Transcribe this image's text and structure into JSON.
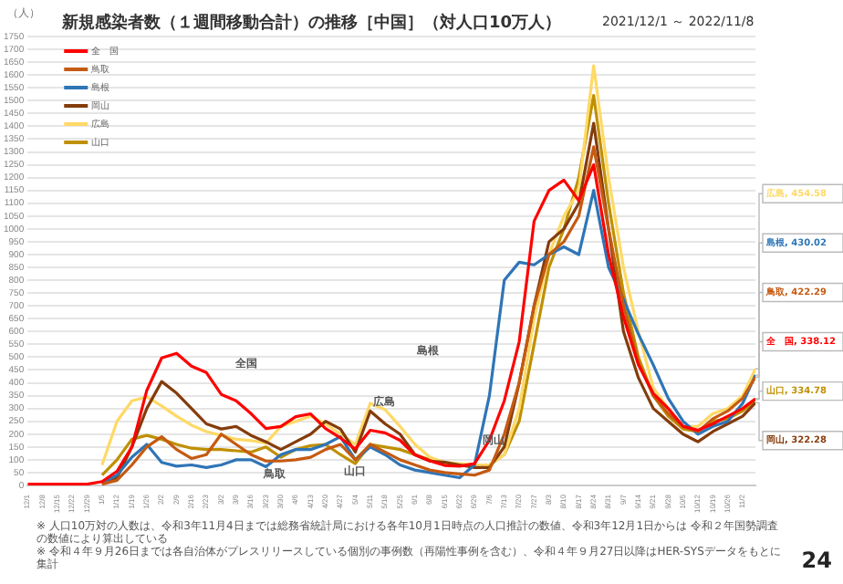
{
  "chart_data": {
    "type": "line",
    "title": "新規感染者数（１週間移動合計）の推移［中国］（対人口10万人）",
    "subtitle": "2021/12/1 ～ 2022/11/8",
    "ylabel": "（人）",
    "x": [
      "2021-12-01",
      "2021-12-08",
      "2021-12-15",
      "2021-12-22",
      "2021-12-29",
      "2022-01-05",
      "2022-01-12",
      "2022-01-19",
      "2022-01-26",
      "2022-02-02",
      "2022-02-09",
      "2022-02-16",
      "2022-02-23",
      "2022-03-02",
      "2022-03-09",
      "2022-03-16",
      "2022-03-23",
      "2022-03-30",
      "2022-04-06",
      "2022-04-13",
      "2022-04-20",
      "2022-04-27",
      "2022-05-04",
      "2022-05-11",
      "2022-05-18",
      "2022-05-25",
      "2022-06-01",
      "2022-06-08",
      "2022-06-15",
      "2022-06-22",
      "2022-06-29",
      "2022-07-06",
      "2022-07-13",
      "2022-07-20",
      "2022-07-27",
      "2022-08-03",
      "2022-08-10",
      "2022-08-17",
      "2022-08-24",
      "2022-08-31",
      "2022-09-07",
      "2022-09-14",
      "2022-09-21",
      "2022-09-28",
      "2022-10-05",
      "2022-10-12",
      "2022-10-19",
      "2022-10-26",
      "2022-11-02",
      "2022-11-08"
    ],
    "series": [
      {
        "name": "全　国",
        "color": "#ff0000",
        "values": [
          5,
          5,
          5,
          5,
          5,
          15,
          55,
          150,
          370,
          497,
          515,
          465,
          440,
          355,
          330,
          280,
          222,
          230,
          268,
          279,
          222,
          185,
          142,
          215,
          205,
          176,
          119,
          96,
          78,
          75,
          85,
          176,
          330,
          560,
          1030,
          1150,
          1190,
          1110,
          1250,
          900,
          657,
          470,
          359,
          300,
          230,
          215,
          240,
          270,
          300,
          338.12
        ],
        "value_labels": [
          null,
          null,
          null,
          null,
          null,
          null,
          null,
          null,
          null,
          null,
          null,
          null,
          null,
          null,
          null,
          null,
          null,
          null,
          null,
          null,
          null,
          null,
          null,
          null,
          null,
          null,
          null,
          null,
          null,
          null,
          null,
          null,
          null,
          null,
          null,
          null,
          null,
          null,
          null,
          null,
          null,
          null,
          null,
          null,
          null,
          null,
          null,
          null,
          null,
          "全　国, 338.12"
        ]
      },
      {
        "name": "鳥取",
        "color": "#c55a11",
        "values": [
          null,
          null,
          null,
          null,
          null,
          5,
          20,
          80,
          150,
          190,
          140,
          105,
          120,
          200,
          160,
          120,
          95,
          95,
          100,
          110,
          140,
          160,
          100,
          160,
          130,
          100,
          80,
          60,
          50,
          45,
          40,
          60,
          200,
          400,
          700,
          900,
          950,
          1050,
          1320,
          1000,
          700,
          480,
          350,
          280,
          230,
          210,
          260,
          290,
          340,
          422.29
        ],
        "value_labels": [
          null,
          null,
          null,
          null,
          null,
          null,
          null,
          null,
          null,
          null,
          null,
          null,
          null,
          null,
          null,
          null,
          null,
          null,
          null,
          null,
          null,
          null,
          null,
          null,
          null,
          null,
          null,
          null,
          null,
          null,
          null,
          null,
          null,
          null,
          null,
          null,
          null,
          null,
          null,
          null,
          null,
          null,
          null,
          null,
          null,
          null,
          null,
          null,
          null,
          "鳥取, 422.29"
        ]
      },
      {
        "name": "島根",
        "color": "#2e75b6",
        "values": [
          null,
          null,
          null,
          null,
          null,
          10,
          40,
          110,
          160,
          90,
          75,
          80,
          70,
          80,
          100,
          100,
          73,
          120,
          140,
          140,
          160,
          190,
          100,
          150,
          120,
          80,
          60,
          50,
          40,
          30,
          80,
          350,
          800,
          870,
          860,
          900,
          930,
          900,
          1150,
          850,
          725,
          590,
          470,
          340,
          250,
          200,
          230,
          250,
          320,
          430.02
        ],
        "value_labels": [
          null,
          null,
          null,
          null,
          null,
          null,
          null,
          null,
          null,
          null,
          null,
          null,
          null,
          null,
          null,
          null,
          null,
          null,
          null,
          null,
          null,
          null,
          null,
          null,
          null,
          null,
          null,
          null,
          null,
          null,
          null,
          null,
          null,
          null,
          null,
          null,
          null,
          null,
          null,
          null,
          null,
          null,
          null,
          null,
          null,
          null,
          null,
          null,
          null,
          "島根, 430.02"
        ]
      },
      {
        "name": "岡山",
        "color": "#843c0c",
        "values": [
          null,
          null,
          null,
          null,
          null,
          5,
          30,
          150,
          300,
          405,
          360,
          300,
          240,
          220,
          230,
          195,
          170,
          140,
          170,
          200,
          250,
          220,
          130,
          290,
          240,
          200,
          120,
          95,
          90,
          80,
          70,
          70,
          150,
          400,
          700,
          950,
          1000,
          1100,
          1412,
          1000,
          600,
          420,
          300,
          250,
          200,
          170,
          210,
          240,
          270,
          322.28
        ],
        "value_labels": [
          null,
          null,
          null,
          null,
          null,
          null,
          null,
          null,
          null,
          null,
          null,
          null,
          null,
          null,
          null,
          null,
          null,
          null,
          null,
          null,
          null,
          null,
          null,
          null,
          null,
          null,
          null,
          null,
          null,
          null,
          null,
          null,
          null,
          null,
          null,
          null,
          null,
          null,
          null,
          null,
          null,
          null,
          null,
          null,
          null,
          null,
          null,
          null,
          null,
          "岡山, 322.28"
        ]
      },
      {
        "name": "広島",
        "color": "#ffd966",
        "values": [
          null,
          null,
          null,
          null,
          null,
          80,
          250,
          330,
          345,
          310,
          270,
          235,
          210,
          195,
          180,
          175,
          165,
          230,
          250,
          270,
          240,
          200,
          160,
          320,
          295,
          230,
          160,
          110,
          90,
          85,
          80,
          80,
          120,
          300,
          650,
          900,
          1050,
          1150,
          1636,
          1200,
          850,
          600,
          380,
          300,
          230,
          230,
          280,
          300,
          350,
          454.58
        ],
        "value_labels": [
          null,
          null,
          null,
          null,
          null,
          null,
          null,
          null,
          null,
          null,
          null,
          null,
          null,
          null,
          null,
          null,
          null,
          null,
          null,
          null,
          null,
          null,
          null,
          null,
          null,
          null,
          null,
          null,
          null,
          null,
          null,
          null,
          null,
          null,
          null,
          null,
          null,
          null,
          null,
          null,
          null,
          null,
          null,
          null,
          null,
          null,
          null,
          null,
          null,
          "広島, 454.58"
        ]
      },
      {
        "name": "山口",
        "color": "#bf9000",
        "values": [
          null,
          null,
          null,
          null,
          null,
          40,
          100,
          180,
          195,
          180,
          160,
          145,
          140,
          140,
          135,
          130,
          150,
          110,
          140,
          155,
          160,
          120,
          85,
          160,
          150,
          140,
          120,
          100,
          90,
          80,
          75,
          80,
          120,
          250,
          550,
          850,
          1000,
          1200,
          1520,
          1100,
          750,
          500,
          350,
          270,
          220,
          210,
          250,
          260,
          290,
          334.78
        ],
        "value_labels": [
          null,
          null,
          null,
          null,
          null,
          null,
          null,
          null,
          null,
          null,
          null,
          null,
          null,
          null,
          null,
          null,
          null,
          null,
          null,
          null,
          null,
          null,
          null,
          null,
          null,
          null,
          null,
          null,
          null,
          null,
          null,
          null,
          null,
          null,
          null,
          null,
          null,
          null,
          null,
          null,
          null,
          null,
          null,
          null,
          null,
          null,
          null,
          null,
          null,
          "山口, 334.78"
        ]
      }
    ],
    "xlim": [
      "2021-12-01",
      "2022-11-08"
    ],
    "xticks": [
      {
        "value": "2021-12-01",
        "label": "12/1"
      },
      {
        "value": "2021-12-08",
        "label": "12/8"
      },
      {
        "value": "2021-12-15",
        "label": "12/15"
      },
      {
        "value": "2021-12-22",
        "label": "12/22"
      },
      {
        "value": "2021-12-29",
        "label": "12/29"
      },
      {
        "value": "2022-01-05",
        "label": "1/5"
      },
      {
        "value": "2022-01-12",
        "label": "1/12"
      },
      {
        "value": "2022-01-19",
        "label": "1/19"
      },
      {
        "value": "2022-01-26",
        "label": "1/26"
      },
      {
        "value": "2022-02-02",
        "label": "2/2"
      },
      {
        "value": "2022-02-09",
        "label": "2/9"
      },
      {
        "value": "2022-02-16",
        "label": "2/16"
      },
      {
        "value": "2022-02-23",
        "label": "2/23"
      },
      {
        "value": "2022-03-02",
        "label": "3/2"
      },
      {
        "value": "2022-03-09",
        "label": "3/9"
      },
      {
        "value": "2022-03-16",
        "label": "3/16"
      },
      {
        "value": "2022-03-23",
        "label": "3/23"
      },
      {
        "value": "2022-03-30",
        "label": "3/30"
      },
      {
        "value": "2022-04-06",
        "label": "4/6"
      },
      {
        "value": "2022-04-13",
        "label": "4/13"
      },
      {
        "value": "2022-04-20",
        "label": "4/20"
      },
      {
        "value": "2022-04-27",
        "label": "4/27"
      },
      {
        "value": "2022-05-04",
        "label": "5/4"
      },
      {
        "value": "2022-05-11",
        "label": "5/11"
      },
      {
        "value": "2022-05-18",
        "label": "5/18"
      },
      {
        "value": "2022-05-25",
        "label": "5/25"
      },
      {
        "value": "2022-06-01",
        "label": "6/1"
      },
      {
        "value": "2022-06-08",
        "label": "6/8"
      },
      {
        "value": "2022-06-15",
        "label": "6/15"
      },
      {
        "value": "2022-06-22",
        "label": "6/22"
      },
      {
        "value": "2022-06-29",
        "label": "6/29"
      },
      {
        "value": "2022-07-06",
        "label": "7/6"
      },
      {
        "value": "2022-07-13",
        "label": "7/13"
      },
      {
        "value": "2022-07-20",
        "label": "7/20"
      },
      {
        "value": "2022-07-27",
        "label": "7/27"
      },
      {
        "value": "2022-08-03",
        "label": "8/3"
      },
      {
        "value": "2022-08-10",
        "label": "8/10"
      },
      {
        "value": "2022-08-17",
        "label": "8/17"
      },
      {
        "value": "2022-08-24",
        "label": "8/24"
      },
      {
        "value": "2022-08-31",
        "label": "8/31"
      },
      {
        "value": "2022-09-07",
        "label": "9/7"
      },
      {
        "value": "2022-09-14",
        "label": "9/14"
      },
      {
        "value": "2022-09-21",
        "label": "9/21"
      },
      {
        "value": "2022-09-28",
        "label": "9/28"
      },
      {
        "value": "2022-10-05",
        "label": "10/5"
      },
      {
        "value": "2022-10-12",
        "label": "10/12"
      },
      {
        "value": "2022-10-19",
        "label": "10/19"
      },
      {
        "value": "2022-10-26",
        "label": "10/26"
      },
      {
        "value": "2022-11-02",
        "label": "11/2"
      }
    ],
    "ylim": [
      0,
      1750
    ],
    "yticks": [
      0,
      50,
      100,
      150,
      200,
      250,
      300,
      350,
      400,
      450,
      500,
      550,
      600,
      650,
      700,
      750,
      800,
      850,
      900,
      950,
      1000,
      1050,
      1100,
      1150,
      1200,
      1250,
      1300,
      1350,
      1400,
      1450,
      1500,
      1550,
      1600,
      1650,
      1700,
      1750
    ],
    "grid": "y",
    "legend": "top left",
    "marker": "none",
    "line_style": "solid",
    "annotations": [
      "全国",
      "鳥取",
      "山口",
      "広島",
      "島根",
      "岡山",
      "※ 人口10万対の人数は、令和3年11月4日までは総務省統計局における各年10月1日時点の人口推計の数値、令和3年12月1日からは 令和２年国勢調査の数値により算出している",
      "※ 令和４年９月26日までは各自治体がプレスリリースしている個別の事例数（再陽性事例を含む）、令和４年９月27日以降はHER-SYSデータをもとに集計",
      "24"
    ]
  }
}
